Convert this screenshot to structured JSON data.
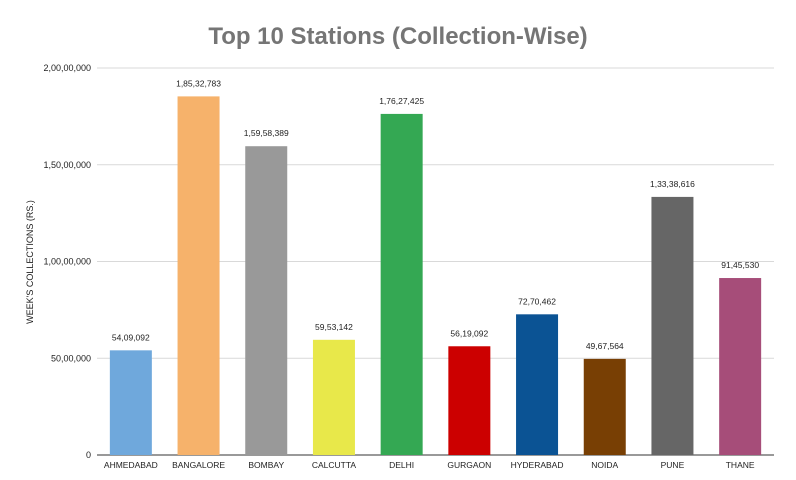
{
  "chart_data": {
    "type": "bar",
    "title": "Top 10 Stations (Collection-Wise)",
    "xlabel": "",
    "ylabel": "WEEK'S COLLECTIONS (RS.)",
    "ylim": [
      0,
      20000000
    ],
    "yticks": [
      0,
      5000000,
      10000000,
      15000000,
      20000000
    ],
    "ytick_labels": [
      "0",
      "50,00,000",
      "1,00,00,000",
      "1,50,00,000",
      "2,00,00,000"
    ],
    "grid": true,
    "legend": "none",
    "categories": [
      "AHMEDABAD",
      "BANGALORE",
      "BOMBAY",
      "CALCUTTA",
      "DELHI",
      "GURGAON",
      "HYDERABAD",
      "NOIDA",
      "PUNE",
      "THANE"
    ],
    "values": [
      5409092,
      18532783,
      15958389,
      5953142,
      17627425,
      5619092,
      7270462,
      4967564,
      13338616,
      9145530
    ],
    "value_labels": [
      "54,09,092",
      "1,85,32,783",
      "1,59,58,389",
      "59,53,142",
      "1,76,27,425",
      "56,19,092",
      "72,70,462",
      "49,67,564",
      "1,33,38,616",
      "91,45,530"
    ],
    "colors": [
      "#6fa8dc",
      "#f6b26b",
      "#999999",
      "#e8e84a",
      "#34a853",
      "#cc0000",
      "#0b5394",
      "#783f04",
      "#666666",
      "#a64d79"
    ]
  }
}
